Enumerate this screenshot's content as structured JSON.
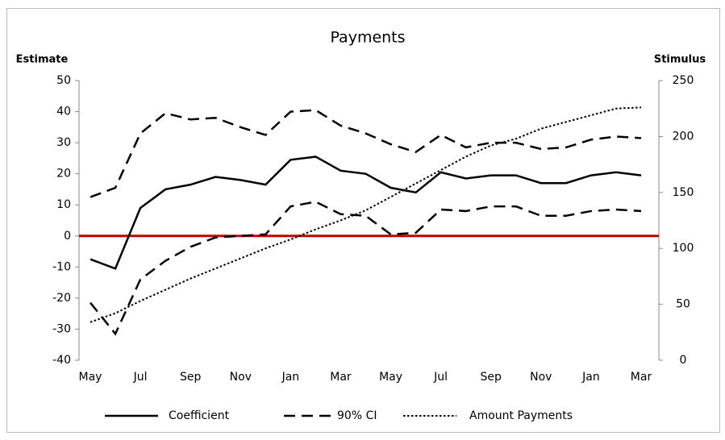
{
  "chart_data": {
    "type": "line",
    "title": "Payments",
    "y_label": "Estimate",
    "y2_label": "Stimulus",
    "categories": [
      "May",
      null,
      "Jul",
      null,
      "Sep",
      null,
      "Nov",
      null,
      "Jan",
      null,
      "Mar",
      null,
      "May",
      null,
      "Jul",
      null,
      "Sep",
      null,
      "Nov",
      null,
      "Jan",
      null,
      "Mar"
    ],
    "series": [
      {
        "name": "Coefficient",
        "color": "#000000",
        "style": "solid",
        "values": [
          -7.5,
          -10.5,
          9,
          15,
          16.5,
          19,
          18,
          16.5,
          24.5,
          25.5,
          21,
          20,
          15.5,
          14,
          20.5,
          18.5,
          19.5,
          19.5,
          17,
          17,
          19.5,
          20.5,
          19.5
        ]
      },
      {
        "name": "90% CI",
        "color": "#000000",
        "style": "dashed",
        "values": [
          12.5,
          15.5,
          33,
          39.5,
          37.5,
          38,
          35,
          32.5,
          40,
          40.5,
          35.5,
          33,
          29.5,
          27,
          32.5,
          28.5,
          30,
          30,
          28,
          28.5,
          31,
          32,
          31.5
        ]
      },
      {
        "color": "#000000",
        "style": "dashed",
        "values": [
          -21.5,
          -31.5,
          -14,
          -8,
          -3.5,
          -0.5,
          0,
          0.5,
          9.5,
          11,
          7,
          6.5,
          0.5,
          1,
          8.5,
          8,
          9.5,
          9.5,
          6.5,
          6.5,
          8,
          8.5,
          8
        ]
      },
      {
        "name": "Amount Payments",
        "color": "#000000",
        "style": "dotted",
        "axis": "y2",
        "values": [
          34,
          42,
          53,
          63,
          73,
          82,
          91,
          100,
          108,
          117,
          125,
          134,
          146,
          158,
          170,
          182,
          192,
          198,
          207,
          213,
          219,
          225,
          226
        ]
      }
    ],
    "ylim": [
      -40,
      50
    ],
    "yticks": [
      -40,
      -30,
      -20,
      -10,
      0,
      10,
      20,
      30,
      40,
      50
    ],
    "y2lim": [
      0,
      250
    ],
    "y2ticks": [
      0,
      50,
      100,
      150,
      200,
      250
    ],
    "reference_line": {
      "value": 0,
      "color": "#c00000"
    }
  }
}
